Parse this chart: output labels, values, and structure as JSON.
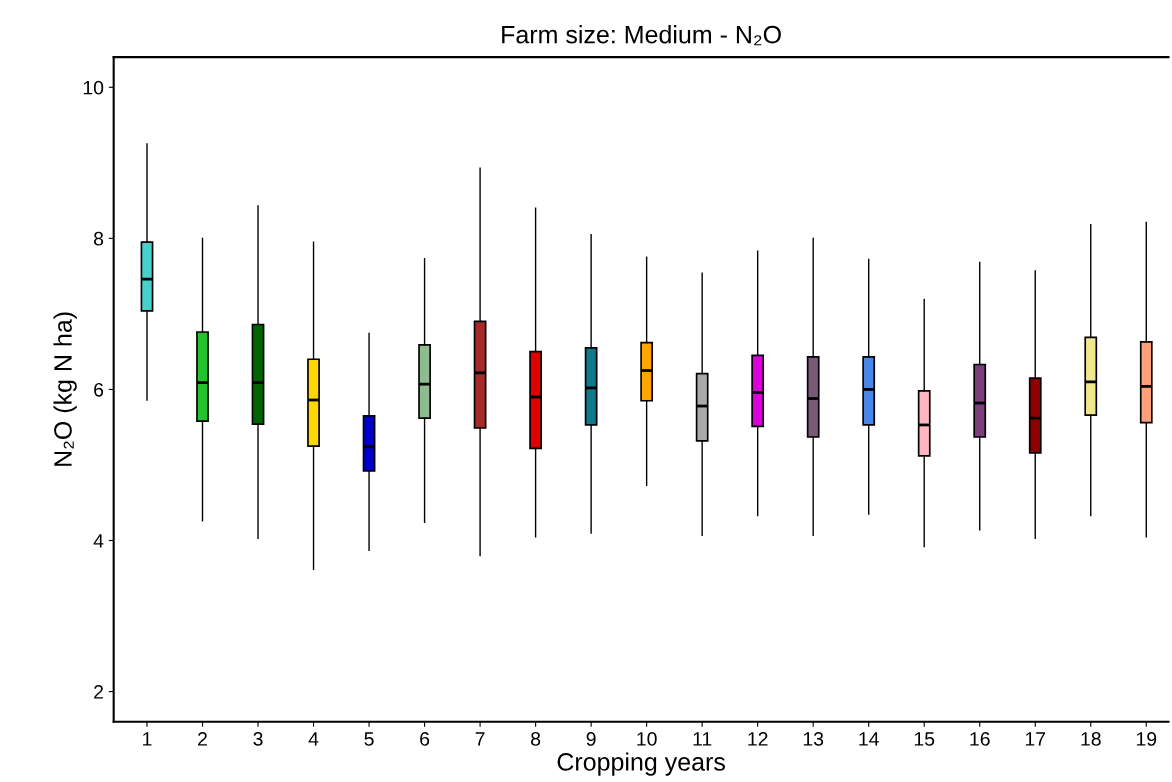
{
  "chart_data": {
    "type": "box",
    "title": "Farm size: Medium - N₂O",
    "xlabel": "Cropping years",
    "ylabel": "N₂O (kg N ha)",
    "categories": [
      "1",
      "2",
      "3",
      "4",
      "5",
      "6",
      "7",
      "8",
      "9",
      "10",
      "11",
      "12",
      "13",
      "14",
      "15",
      "16",
      "17",
      "18",
      "19"
    ],
    "ylim": [
      1.6,
      10.4
    ],
    "yticks": [
      2,
      4,
      6,
      8,
      10
    ],
    "grid": false,
    "colors": [
      "#48d1cc",
      "#22c32e",
      "#006400",
      "#ffd700",
      "#0000cd",
      "#8fbc8f",
      "#a52a2a",
      "#e00000",
      "#0e7a8c",
      "#ffa500",
      "#a9a9a9",
      "#dd00dd",
      "#7b5a78",
      "#4a86e8",
      "#ffb6c1",
      "#7b3f7b",
      "#8b0000",
      "#f0e68c",
      "#ffa07a"
    ],
    "boxes": [
      {
        "low": 5.86,
        "q1": 7.04,
        "median": 7.46,
        "q3": 7.95,
        "high": 9.25
      },
      {
        "low": 4.26,
        "q1": 5.58,
        "median": 6.09,
        "q3": 6.76,
        "high": 8.0
      },
      {
        "low": 4.03,
        "q1": 5.54,
        "median": 6.09,
        "q3": 6.86,
        "high": 8.43
      },
      {
        "low": 3.62,
        "q1": 5.25,
        "median": 5.86,
        "q3": 6.4,
        "high": 7.95
      },
      {
        "low": 3.87,
        "q1": 4.92,
        "median": 5.24,
        "q3": 5.65,
        "high": 6.74
      },
      {
        "low": 4.24,
        "q1": 5.62,
        "median": 6.07,
        "q3": 6.59,
        "high": 7.73
      },
      {
        "low": 3.8,
        "q1": 5.49,
        "median": 6.22,
        "q3": 6.9,
        "high": 8.93
      },
      {
        "low": 4.05,
        "q1": 5.22,
        "median": 5.9,
        "q3": 6.5,
        "high": 8.4
      },
      {
        "low": 4.1,
        "q1": 5.53,
        "median": 6.02,
        "q3": 6.55,
        "high": 8.05
      },
      {
        "low": 4.73,
        "q1": 5.85,
        "median": 6.25,
        "q3": 6.62,
        "high": 7.75
      },
      {
        "low": 4.07,
        "q1": 5.32,
        "median": 5.78,
        "q3": 6.21,
        "high": 7.54
      },
      {
        "low": 4.33,
        "q1": 5.51,
        "median": 5.96,
        "q3": 6.45,
        "high": 7.83
      },
      {
        "low": 4.07,
        "q1": 5.37,
        "median": 5.88,
        "q3": 6.43,
        "high": 8.0
      },
      {
        "low": 4.35,
        "q1": 5.53,
        "median": 6.0,
        "q3": 6.43,
        "high": 7.72
      },
      {
        "low": 3.92,
        "q1": 5.12,
        "median": 5.53,
        "q3": 5.98,
        "high": 7.19
      },
      {
        "low": 4.14,
        "q1": 5.37,
        "median": 5.82,
        "q3": 6.33,
        "high": 7.68
      },
      {
        "low": 4.03,
        "q1": 5.16,
        "median": 5.62,
        "q3": 6.15,
        "high": 7.57
      },
      {
        "low": 4.33,
        "q1": 5.66,
        "median": 6.1,
        "q3": 6.69,
        "high": 8.18
      },
      {
        "low": 4.05,
        "q1": 5.56,
        "median": 6.04,
        "q3": 6.63,
        "high": 8.21
      }
    ]
  }
}
